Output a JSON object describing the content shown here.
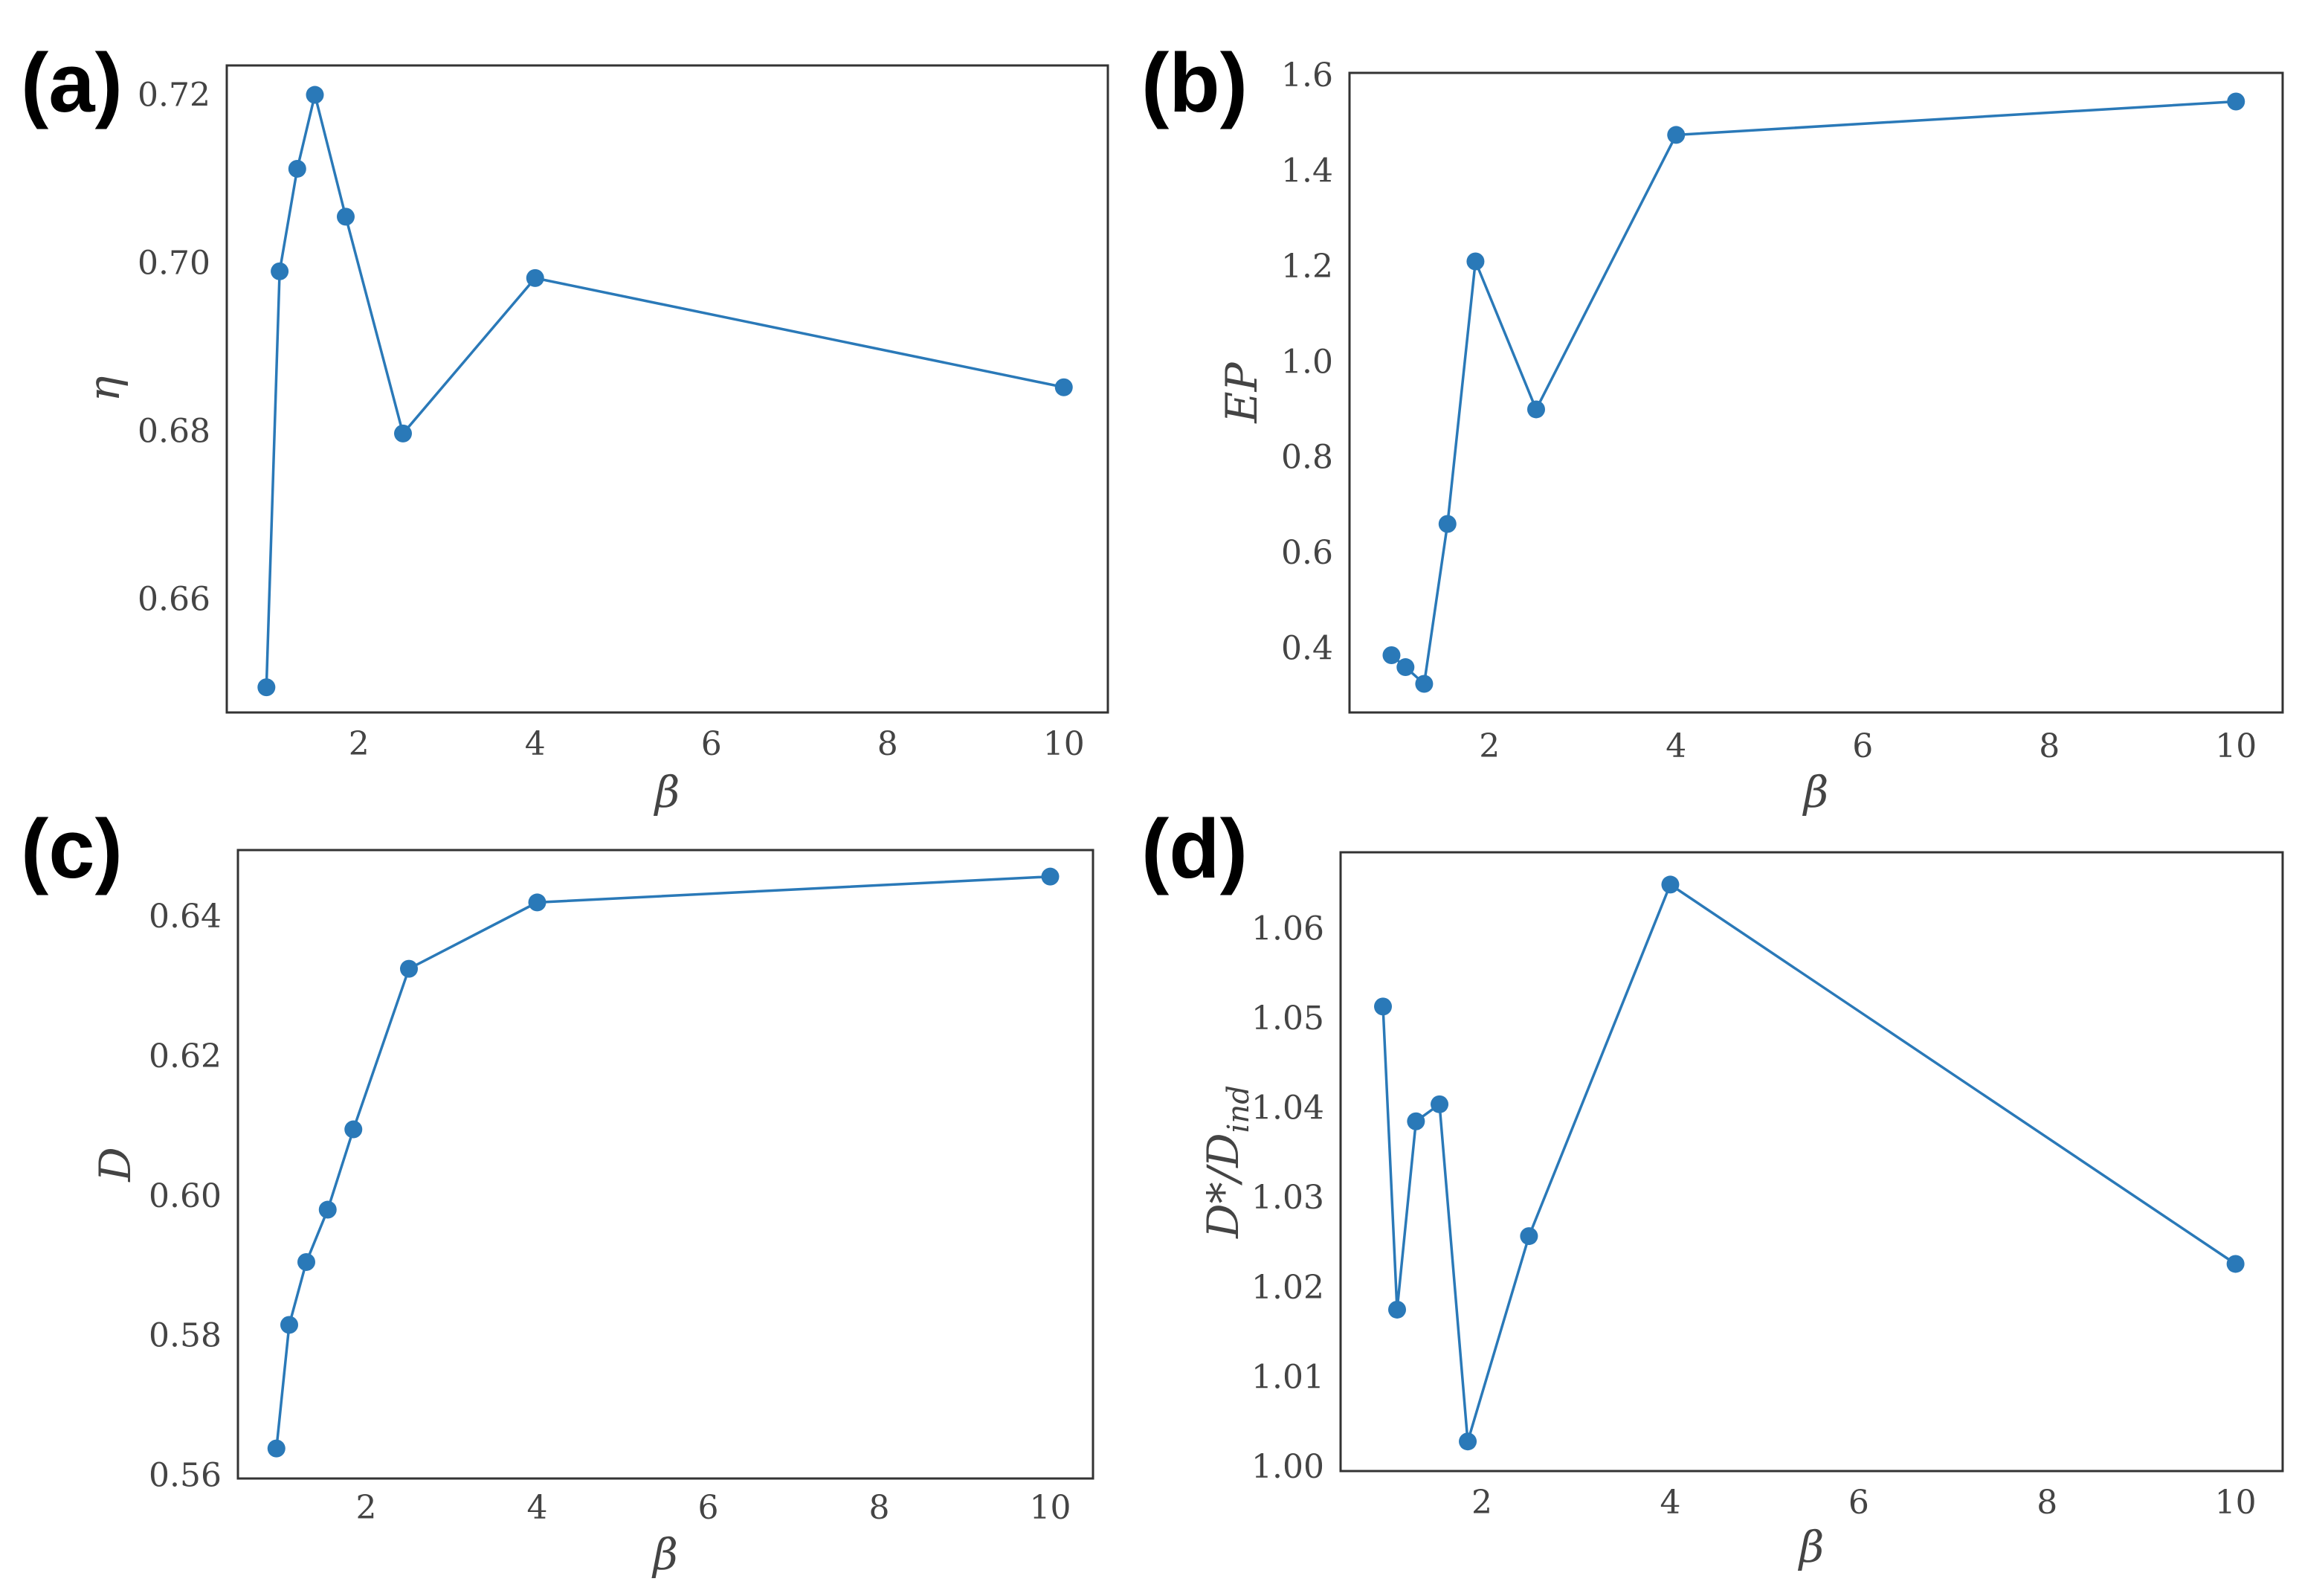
{
  "colors": {
    "series": "#2a79b8",
    "frame": "#333333",
    "text": "#444444"
  },
  "chart_data": [
    {
      "panel_label": "(a)",
      "type": "line",
      "xlabel": "β",
      "ylabel": "η",
      "xlim": [
        0.5,
        10.5
      ],
      "ylim": [
        0.6465,
        0.7235
      ],
      "xticks": [
        2,
        4,
        6,
        8,
        10
      ],
      "yticks": [
        0.66,
        0.68,
        0.7,
        0.72
      ],
      "ytick_labels": [
        "0.66",
        "0.68",
        "0.70",
        "0.72"
      ],
      "marker": "circle",
      "x": [
        0.95,
        1.1,
        1.3,
        1.5,
        1.85,
        2.5,
        4.0,
        10.0
      ],
      "y": [
        0.6495,
        0.699,
        0.7112,
        0.72,
        0.7055,
        0.6797,
        0.6982,
        0.6852
      ]
    },
    {
      "panel_label": "(b)",
      "type": "line",
      "xlabel": "β",
      "ylabel": "EP",
      "xlim": [
        0.5,
        10.5
      ],
      "ylim": [
        0.265,
        1.605
      ],
      "xticks": [
        2,
        4,
        6,
        8,
        10
      ],
      "yticks": [
        0.4,
        0.6,
        0.8,
        1.0,
        1.2,
        1.4,
        1.6
      ],
      "ytick_labels": [
        "0.4",
        "0.6",
        "0.8",
        "1.0",
        "1.2",
        "1.4",
        "1.6"
      ],
      "marker": "circle",
      "x": [
        0.95,
        1.1,
        1.3,
        1.55,
        1.85,
        2.5,
        4.0,
        10.0
      ],
      "y": [
        0.385,
        0.36,
        0.325,
        0.66,
        1.21,
        0.9,
        1.475,
        1.545
      ]
    },
    {
      "panel_label": "(c)",
      "type": "line",
      "xlabel": "β",
      "ylabel": "D",
      "xlim": [
        0.5,
        10.5
      ],
      "ylim": [
        0.5595,
        0.6495
      ],
      "xticks": [
        2,
        4,
        6,
        8,
        10
      ],
      "yticks": [
        0.56,
        0.58,
        0.6,
        0.62,
        0.64
      ],
      "ytick_labels": [
        "0.56",
        "0.58",
        "0.60",
        "0.62",
        "0.64"
      ],
      "marker": "circle",
      "x": [
        0.95,
        1.1,
        1.3,
        1.55,
        1.85,
        2.5,
        4.0,
        10.0
      ],
      "y": [
        0.5638,
        0.5815,
        0.5905,
        0.598,
        0.6095,
        0.6325,
        0.642,
        0.6457
      ]
    },
    {
      "panel_label": "(d)",
      "type": "line",
      "xlabel": "β",
      "ylabel": "D*/D_ind",
      "ylabel_main": "D*/D",
      "ylabel_sub": "ind",
      "xlim": [
        0.5,
        10.5
      ],
      "ylim": [
        0.9995,
        1.0685
      ],
      "xticks": [
        2,
        4,
        6,
        8,
        10
      ],
      "yticks": [
        1.0,
        1.01,
        1.02,
        1.03,
        1.04,
        1.05,
        1.06
      ],
      "ytick_labels": [
        "1.00",
        "1.01",
        "1.02",
        "1.03",
        "1.04",
        "1.05",
        "1.06"
      ],
      "marker": "circle",
      "x": [
        0.95,
        1.1,
        1.3,
        1.55,
        1.85,
        2.5,
        4.0,
        10.0
      ],
      "y": [
        1.0513,
        1.0175,
        1.0385,
        1.0404,
        1.0028,
        1.0257,
        1.0649,
        1.0226
      ]
    }
  ]
}
